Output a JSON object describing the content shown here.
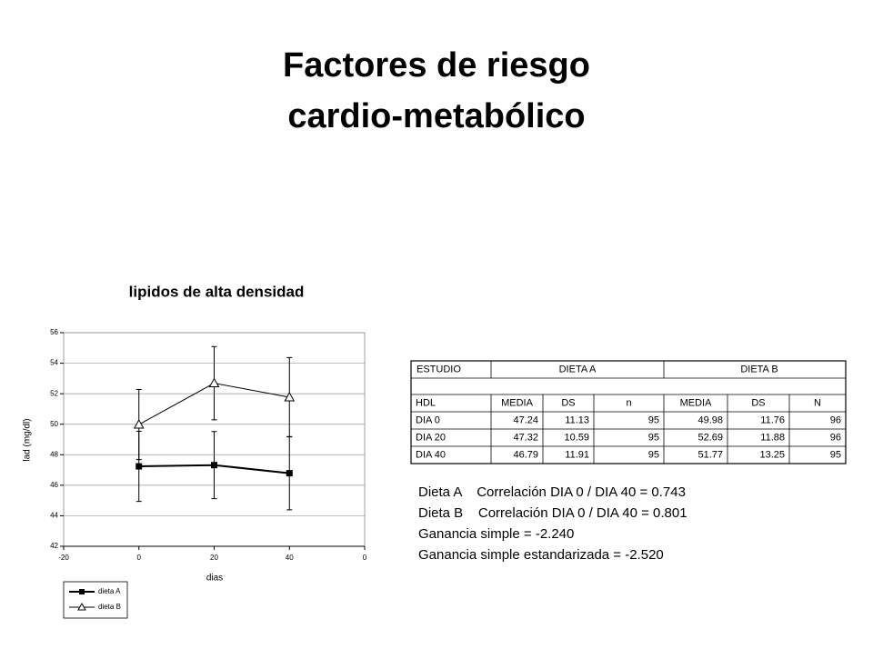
{
  "title": [
    "Factores de riesgo",
    "cardio-metabólico"
  ],
  "chart_data": {
    "type": "line",
    "title": "lipidos de alta densidad",
    "x_label": "dias",
    "y_label": "lad (mg/dl)",
    "x": [
      0,
      20,
      40
    ],
    "series": [
      {
        "name": "dieta A",
        "color": "#000000",
        "marker": "square",
        "values": [
          47.24,
          47.32,
          46.79
        ],
        "errors": [
          2.3,
          2.2,
          2.4
        ]
      },
      {
        "name": "dieta B",
        "color": "#000000",
        "marker": "triangle",
        "values": [
          49.98,
          52.69,
          51.77
        ],
        "errors": [
          2.3,
          2.4,
          2.6
        ]
      }
    ],
    "xlim": [
      -20,
      60
    ],
    "xticks": [
      -20,
      0,
      20,
      40,
      {
        "value": 60,
        "label": "0"
      }
    ],
    "ylim": [
      42,
      56
    ],
    "yticks": [
      42,
      44,
      46,
      48,
      50,
      52,
      54,
      56
    ],
    "grid": true,
    "legend": "bottom-left"
  },
  "table": {
    "groups": [
      "ESTUDIO",
      "DIETA A",
      "DIETA B"
    ],
    "header": [
      "HDL",
      "MEDIA",
      "DS",
      "n",
      "MEDIA",
      "DS",
      "N"
    ],
    "rows": [
      [
        "DIA 0",
        47.24,
        11.13,
        95,
        49.98,
        11.76,
        96
      ],
      [
        "DIA 20",
        47.32,
        10.59,
        95,
        52.69,
        11.88,
        96
      ],
      [
        "DIA 40",
        46.79,
        11.91,
        95,
        51.77,
        13.25,
        95
      ]
    ]
  },
  "notes": [
    "Dieta A    Correlación DIA 0 / DIA 40 = 0.743",
    "Dieta B    Correlación DIA 0 / DIA 40 = 0.801",
    "Ganancia simple = -2.240",
    "Ganancia simple estandarizada = -2.520"
  ]
}
